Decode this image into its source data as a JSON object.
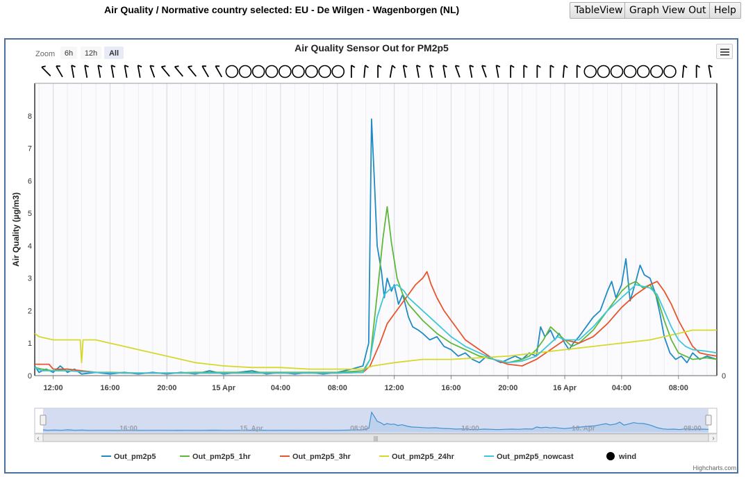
{
  "page": {
    "title": "Air Quality / Normative country selected: EU - De Wilgen - Wagenborgen (NL)",
    "buttons": [
      "TableView",
      "Graph View Out",
      "Help"
    ]
  },
  "chart": {
    "zoom_label": "Zoom",
    "zoom_options": [
      "6h",
      "12h",
      "All"
    ],
    "zoom_selected": "All",
    "credit": "Highcharts.com",
    "navigator_labels": [
      "16:00",
      "15. Apr",
      "08:00",
      "16:00",
      "16. Apr",
      "08:00"
    ],
    "right_axis_label": "0",
    "menu_icon": "hamburger-menu-icon"
  },
  "chart_data": {
    "type": "line",
    "title": "Air Quality Sensor Out for PM2p5",
    "ylabel": "Air Quality (µg/m3)",
    "xlabel": "",
    "ylim": [
      0,
      9
    ],
    "yticks": [
      0,
      1,
      2,
      3,
      4,
      5,
      6,
      7,
      8
    ],
    "xlim_hours": [
      -1.3,
      46.7
    ],
    "x_ticks": [
      {
        "h": 0,
        "label": "12:00"
      },
      {
        "h": 4,
        "label": "16:00"
      },
      {
        "h": 8,
        "label": "20:00"
      },
      {
        "h": 12,
        "label": "15 Apr"
      },
      {
        "h": 16,
        "label": "04:00"
      },
      {
        "h": 20,
        "label": "08:00"
      },
      {
        "h": 24,
        "label": "12:00"
      },
      {
        "h": 28,
        "label": "16:00"
      },
      {
        "h": 32,
        "label": "20:00"
      },
      {
        "h": 36,
        "label": "16 Apr"
      },
      {
        "h": 40,
        "label": "04:00"
      },
      {
        "h": 44,
        "label": "08:00"
      }
    ],
    "grid": true,
    "legend_position": "bottom",
    "series": [
      {
        "name": "Out_pm2p5",
        "color": "#1f8ac4",
        "points": [
          [
            -1.3,
            0.3
          ],
          [
            -1,
            0.1
          ],
          [
            -0.5,
            0.2
          ],
          [
            0,
            0.1
          ],
          [
            0.5,
            0.3
          ],
          [
            1,
            0.1
          ],
          [
            1.5,
            0.2
          ],
          [
            2,
            0.05
          ],
          [
            3,
            0.1
          ],
          [
            4,
            0.05
          ],
          [
            5,
            0.1
          ],
          [
            6,
            0.05
          ],
          [
            7,
            0.1
          ],
          [
            8,
            0.05
          ],
          [
            9,
            0.1
          ],
          [
            10,
            0.05
          ],
          [
            11,
            0.15
          ],
          [
            12,
            0.05
          ],
          [
            13,
            0.1
          ],
          [
            14,
            0.15
          ],
          [
            15,
            0.05
          ],
          [
            16,
            0.1
          ],
          [
            17,
            0.05
          ],
          [
            18,
            0.1
          ],
          [
            19,
            0.05
          ],
          [
            20,
            0.1
          ],
          [
            21,
            0.2
          ],
          [
            21.8,
            0.3
          ],
          [
            22.2,
            1.0
          ],
          [
            22.4,
            7.9
          ],
          [
            22.6,
            6.0
          ],
          [
            22.8,
            4.0
          ],
          [
            23.1,
            3.2
          ],
          [
            23.3,
            2.4
          ],
          [
            23.5,
            3.0
          ],
          [
            23.8,
            2.6
          ],
          [
            24,
            2.8
          ],
          [
            24.3,
            2.2
          ],
          [
            24.6,
            2.5
          ],
          [
            25,
            1.8
          ],
          [
            25.3,
            1.5
          ],
          [
            25.7,
            1.4
          ],
          [
            26,
            1.3
          ],
          [
            26.5,
            1.1
          ],
          [
            27,
            1.2
          ],
          [
            27.5,
            0.9
          ],
          [
            28,
            0.8
          ],
          [
            28.5,
            0.6
          ],
          [
            29,
            0.7
          ],
          [
            29.5,
            0.5
          ],
          [
            30,
            0.4
          ],
          [
            30.5,
            0.6
          ],
          [
            31,
            0.5
          ],
          [
            31.5,
            0.4
          ],
          [
            32,
            0.5
          ],
          [
            32.5,
            0.6
          ],
          [
            33,
            0.5
          ],
          [
            33.5,
            0.7
          ],
          [
            34,
            0.6
          ],
          [
            34.3,
            1.5
          ],
          [
            34.6,
            1.2
          ],
          [
            35,
            1.4
          ],
          [
            35.3,
            1.1
          ],
          [
            35.6,
            1.3
          ],
          [
            36,
            1.0
          ],
          [
            36.3,
            0.8
          ],
          [
            36.6,
            1.0
          ],
          [
            37,
            1.2
          ],
          [
            37.5,
            1.5
          ],
          [
            38,
            1.8
          ],
          [
            38.5,
            2.0
          ],
          [
            39,
            2.6
          ],
          [
            39.3,
            2.9
          ],
          [
            39.6,
            2.4
          ],
          [
            40,
            2.8
          ],
          [
            40.3,
            3.6
          ],
          [
            40.6,
            2.3
          ],
          [
            41,
            2.9
          ],
          [
            41.3,
            3.4
          ],
          [
            41.6,
            3.1
          ],
          [
            42,
            3.0
          ],
          [
            42.4,
            2.5
          ],
          [
            42.7,
            1.9
          ],
          [
            43,
            1.2
          ],
          [
            43.4,
            0.7
          ],
          [
            43.8,
            0.5
          ],
          [
            44.2,
            0.6
          ],
          [
            44.6,
            0.4
          ],
          [
            45,
            0.7
          ],
          [
            45.5,
            0.5
          ],
          [
            46,
            0.6
          ],
          [
            46.7,
            0.5
          ]
        ]
      },
      {
        "name": "Out_pm2p5_1hr",
        "color": "#5db83a",
        "points": [
          [
            -1.3,
            0.25
          ],
          [
            -0.8,
            0.2
          ],
          [
            0,
            0.15
          ],
          [
            1,
            0.2
          ],
          [
            2,
            0.15
          ],
          [
            3,
            0.1
          ],
          [
            4,
            0.1
          ],
          [
            6,
            0.08
          ],
          [
            8,
            0.08
          ],
          [
            10,
            0.1
          ],
          [
            12,
            0.1
          ],
          [
            14,
            0.1
          ],
          [
            16,
            0.1
          ],
          [
            18,
            0.1
          ],
          [
            20,
            0.1
          ],
          [
            21.8,
            0.15
          ],
          [
            22.3,
            0.5
          ],
          [
            22.8,
            2.5
          ],
          [
            23.2,
            4.2
          ],
          [
            23.5,
            5.2
          ],
          [
            23.8,
            4.1
          ],
          [
            24.2,
            3.0
          ],
          [
            24.6,
            2.5
          ],
          [
            25,
            2.2
          ],
          [
            26,
            1.7
          ],
          [
            27,
            1.3
          ],
          [
            28,
            1.0
          ],
          [
            29,
            0.8
          ],
          [
            30,
            0.6
          ],
          [
            31,
            0.5
          ],
          [
            32,
            0.4
          ],
          [
            33,
            0.5
          ],
          [
            33.5,
            0.6
          ],
          [
            34,
            0.8
          ],
          [
            34.5,
            1.1
          ],
          [
            35,
            1.5
          ],
          [
            35.5,
            1.3
          ],
          [
            36,
            1.1
          ],
          [
            36.5,
            0.9
          ],
          [
            37,
            1.0
          ],
          [
            38,
            1.4
          ],
          [
            39,
            2.0
          ],
          [
            40,
            2.6
          ],
          [
            40.5,
            2.8
          ],
          [
            41,
            2.9
          ],
          [
            41.5,
            2.7
          ],
          [
            42,
            2.8
          ],
          [
            42.5,
            2.4
          ],
          [
            43,
            1.7
          ],
          [
            43.5,
            1.1
          ],
          [
            44,
            0.7
          ],
          [
            44.5,
            0.6
          ],
          [
            45,
            0.5
          ],
          [
            46,
            0.55
          ],
          [
            46.7,
            0.5
          ]
        ]
      },
      {
        "name": "Out_pm2p5_3hr",
        "color": "#e8542a",
        "points": [
          [
            -1.3,
            0.35
          ],
          [
            -0.3,
            0.35
          ],
          [
            0,
            0.2
          ],
          [
            1,
            0.2
          ],
          [
            2,
            0.15
          ],
          [
            3,
            0.1
          ],
          [
            5,
            0.08
          ],
          [
            8,
            0.08
          ],
          [
            12,
            0.08
          ],
          [
            16,
            0.08
          ],
          [
            20,
            0.08
          ],
          [
            21.8,
            0.1
          ],
          [
            22.3,
            0.3
          ],
          [
            23,
            1.0
          ],
          [
            23.5,
            1.6
          ],
          [
            24,
            1.9
          ],
          [
            24.5,
            2.2
          ],
          [
            25,
            2.5
          ],
          [
            25.5,
            2.8
          ],
          [
            26,
            3.0
          ],
          [
            26.3,
            3.2
          ],
          [
            26.6,
            2.8
          ],
          [
            27,
            2.4
          ],
          [
            27.5,
            2.0
          ],
          [
            28,
            1.7
          ],
          [
            28.5,
            1.4
          ],
          [
            29,
            1.1
          ],
          [
            30,
            0.8
          ],
          [
            31,
            0.5
          ],
          [
            32,
            0.35
          ],
          [
            33,
            0.3
          ],
          [
            34,
            0.5
          ],
          [
            35,
            0.8
          ],
          [
            36,
            1.1
          ],
          [
            37,
            1.0
          ],
          [
            38,
            1.2
          ],
          [
            39,
            1.6
          ],
          [
            40,
            2.1
          ],
          [
            41,
            2.5
          ],
          [
            42,
            2.8
          ],
          [
            42.5,
            2.9
          ],
          [
            43,
            2.6
          ],
          [
            43.5,
            2.2
          ],
          [
            44,
            1.7
          ],
          [
            44.5,
            1.3
          ],
          [
            45,
            0.9
          ],
          [
            45.5,
            0.7
          ],
          [
            46,
            0.65
          ],
          [
            46.7,
            0.6
          ]
        ]
      },
      {
        "name": "Out_pm2p5_24hr",
        "color": "#d6d82a",
        "points": [
          [
            -1.3,
            1.3
          ],
          [
            -1,
            1.2
          ],
          [
            0,
            1.1
          ],
          [
            1,
            1.1
          ],
          [
            1.5,
            1.1
          ],
          [
            1.9,
            1.1
          ],
          [
            2.0,
            0.4
          ],
          [
            2.1,
            1.1
          ],
          [
            3,
            1.1
          ],
          [
            4,
            1.0
          ],
          [
            5,
            0.9
          ],
          [
            6,
            0.8
          ],
          [
            7,
            0.7
          ],
          [
            8,
            0.6
          ],
          [
            9,
            0.5
          ],
          [
            10,
            0.4
          ],
          [
            11,
            0.35
          ],
          [
            12,
            0.3
          ],
          [
            14,
            0.25
          ],
          [
            16,
            0.25
          ],
          [
            18,
            0.2
          ],
          [
            20,
            0.2
          ],
          [
            21.8,
            0.2
          ],
          [
            22.5,
            0.3
          ],
          [
            24,
            0.4
          ],
          [
            26,
            0.5
          ],
          [
            28,
            0.5
          ],
          [
            30,
            0.55
          ],
          [
            32,
            0.6
          ],
          [
            34,
            0.7
          ],
          [
            36,
            0.8
          ],
          [
            38,
            0.9
          ],
          [
            40,
            1.0
          ],
          [
            42,
            1.1
          ],
          [
            43,
            1.2
          ],
          [
            44,
            1.3
          ],
          [
            45,
            1.4
          ],
          [
            46.7,
            1.4
          ]
        ]
      },
      {
        "name": "Out_pm2p5_nowcast",
        "color": "#3fc6d8",
        "points": [
          [
            -1.3,
            0.25
          ],
          [
            -0.8,
            0.15
          ],
          [
            0,
            0.15
          ],
          [
            1,
            0.15
          ],
          [
            2,
            0.12
          ],
          [
            3,
            0.1
          ],
          [
            5,
            0.08
          ],
          [
            8,
            0.08
          ],
          [
            12,
            0.08
          ],
          [
            16,
            0.08
          ],
          [
            20,
            0.08
          ],
          [
            21.8,
            0.1
          ],
          [
            22.3,
            0.5
          ],
          [
            22.8,
            1.8
          ],
          [
            23.3,
            2.5
          ],
          [
            23.8,
            2.7
          ],
          [
            24.2,
            2.8
          ],
          [
            24.7,
            2.6
          ],
          [
            25,
            2.4
          ],
          [
            26,
            2.0
          ],
          [
            27,
            1.6
          ],
          [
            28,
            1.2
          ],
          [
            29,
            0.9
          ],
          [
            30,
            0.7
          ],
          [
            31,
            0.5
          ],
          [
            32,
            0.4
          ],
          [
            33,
            0.45
          ],
          [
            34,
            0.6
          ],
          [
            35,
            1.0
          ],
          [
            35.5,
            1.2
          ],
          [
            36,
            1.1
          ],
          [
            37,
            1.1
          ],
          [
            38,
            1.5
          ],
          [
            39,
            2.0
          ],
          [
            40,
            2.4
          ],
          [
            40.5,
            2.6
          ],
          [
            41,
            2.8
          ],
          [
            41.5,
            2.75
          ],
          [
            42,
            2.7
          ],
          [
            42.5,
            2.5
          ],
          [
            43,
            2.0
          ],
          [
            43.5,
            1.5
          ],
          [
            44,
            1.1
          ],
          [
            44.5,
            0.9
          ],
          [
            45,
            0.8
          ],
          [
            46,
            0.75
          ],
          [
            46.7,
            0.7
          ]
        ]
      }
    ],
    "wind": {
      "name": "wind",
      "color": "#000000",
      "directions": [
        315,
        330,
        350,
        350,
        350,
        350,
        350,
        350,
        340,
        320,
        320,
        320,
        330,
        330,
        null,
        null,
        null,
        null,
        null,
        null,
        null,
        null,
        null,
        0,
        5,
        0,
        10,
        350,
        350,
        350,
        350,
        340,
        350,
        340,
        350,
        0,
        0,
        0,
        0,
        5,
        0,
        null,
        null,
        null,
        null,
        null,
        null,
        null,
        5,
        0,
        350
      ],
      "step_hours": 1
    }
  }
}
